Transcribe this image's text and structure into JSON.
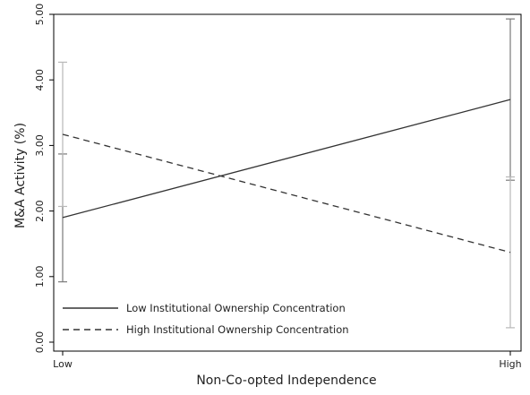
{
  "chart_data": {
    "type": "line",
    "title": "",
    "xlabel": "Non-Co-opted Independence",
    "ylabel": "M&A Activity (%)",
    "categories": [
      "Low",
      "High"
    ],
    "ylim": [
      0,
      5
    ],
    "yticks": [
      "0.00",
      "1.00",
      "2.00",
      "3.00",
      "4.00",
      "5.00"
    ],
    "grid": false,
    "legend_position": "bottom-left",
    "series": [
      {
        "name": "Low Institutional Ownership Concentration",
        "line_style": "solid",
        "color": "#333333",
        "values": [
          1.9,
          3.7
        ],
        "ci_lower": [
          0.92,
          2.47
        ],
        "ci_upper": [
          2.87,
          4.93
        ]
      },
      {
        "name": "High Institutional Ownership Concentration",
        "line_style": "dashed",
        "color": "#333333",
        "values": [
          3.17,
          1.37
        ],
        "ci_lower": [
          2.07,
          0.22
        ],
        "ci_upper": [
          4.27,
          2.52
        ]
      }
    ],
    "ci_colors": [
      "#7a7a7a",
      "#b8b8b8"
    ]
  }
}
